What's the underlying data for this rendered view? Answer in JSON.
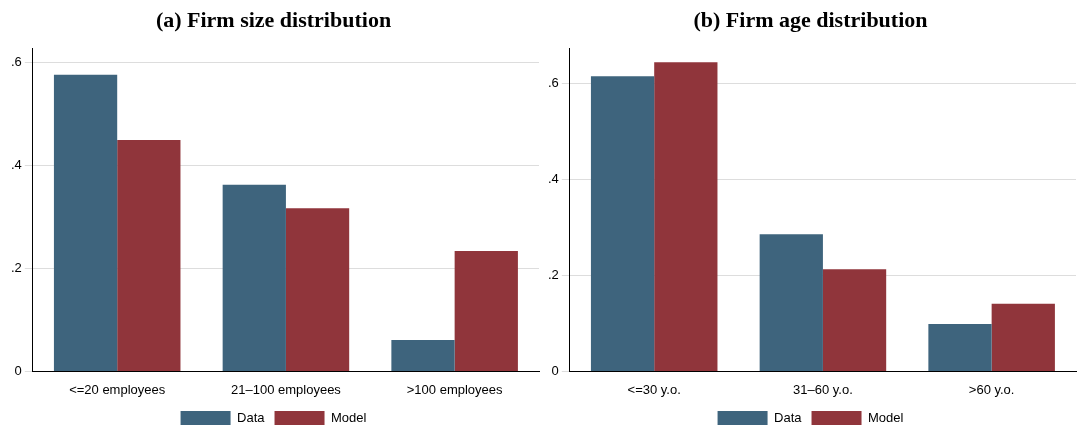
{
  "chart_data": [
    {
      "type": "bar",
      "title": "(a) Firm size distribution",
      "categories": [
        "<=20 employees",
        "21–100 employees",
        ">100 employees"
      ],
      "series": [
        {
          "name": "Data",
          "color": "#3e647d",
          "values": [
            0.577,
            0.363,
            0.061
          ]
        },
        {
          "name": "Model",
          "color": "#90353b",
          "values": [
            0.45,
            0.317,
            0.234
          ]
        }
      ],
      "ylim": [
        0,
        0.628
      ],
      "yticks": [
        {
          "value": 0,
          "label": "0"
        },
        {
          "value": 0.2,
          "label": ".2"
        },
        {
          "value": 0.4,
          "label": ".4"
        },
        {
          "value": 0.6,
          "label": ".6"
        }
      ],
      "grid": "y",
      "legend": "bottom"
    },
    {
      "type": "bar",
      "title": "(b) Firm age distribution",
      "categories": [
        "<=30 y.o.",
        "31–60 y.o.",
        ">60 y.o."
      ],
      "series": [
        {
          "name": "Data",
          "color": "#3e647d",
          "values": [
            0.616,
            0.286,
            0.099
          ]
        },
        {
          "name": "Model",
          "color": "#90353b",
          "values": [
            0.645,
            0.213,
            0.141
          ]
        }
      ],
      "ylim": [
        0,
        0.674
      ],
      "yticks": [
        {
          "value": 0,
          "label": "0"
        },
        {
          "value": 0.2,
          "label": ".2"
        },
        {
          "value": 0.4,
          "label": ".4"
        },
        {
          "value": 0.6,
          "label": ".6"
        }
      ],
      "grid": "y",
      "legend": "bottom"
    }
  ]
}
